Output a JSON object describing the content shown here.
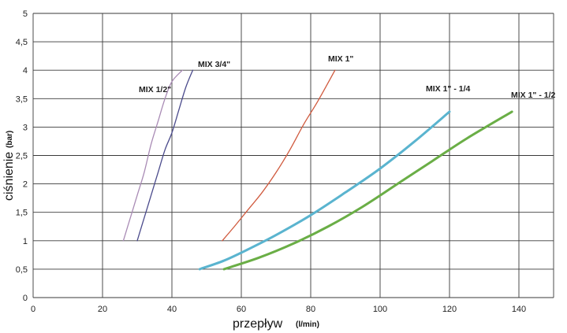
{
  "chart_data": {
    "type": "line",
    "xlabel": "przepływ",
    "xunit": "(l/min)",
    "ylabel": "ciśnienie",
    "yunit": "(bar)",
    "xlim": [
      0,
      150
    ],
    "ylim": [
      0,
      5
    ],
    "xticks": [
      0,
      20,
      40,
      60,
      80,
      100,
      120,
      140
    ],
    "yticks": [
      "0",
      "0,5",
      "1",
      "1,5",
      "2",
      "2,5",
      "3",
      "3,5",
      "4",
      "4,5",
      "5"
    ],
    "grid": true,
    "series": [
      {
        "name": "MIX 1/2\"",
        "color": "#a98bb5",
        "width": 1.3,
        "points": [
          [
            26,
            1
          ],
          [
            28,
            1.4
          ],
          [
            30,
            1.8
          ],
          [
            32,
            2.2
          ],
          [
            34,
            2.7
          ],
          [
            36,
            3.1
          ],
          [
            38,
            3.5
          ],
          [
            40,
            3.8
          ],
          [
            43,
            4
          ]
        ]
      },
      {
        "name": "MIX 3/4\"",
        "color": "#4b4b8c",
        "width": 1.3,
        "points": [
          [
            30,
            1
          ],
          [
            32,
            1.4
          ],
          [
            34,
            1.8
          ],
          [
            36,
            2.2
          ],
          [
            38,
            2.6
          ],
          [
            40,
            2.9
          ],
          [
            42,
            3.3
          ],
          [
            44,
            3.7
          ],
          [
            46,
            4
          ]
        ]
      },
      {
        "name": "MIX 1\"",
        "color": "#d05a3e",
        "width": 1.3,
        "points": [
          [
            54.5,
            1
          ],
          [
            58,
            1.25
          ],
          [
            62,
            1.55
          ],
          [
            66,
            1.85
          ],
          [
            70,
            2.2
          ],
          [
            74,
            2.6
          ],
          [
            78,
            3.05
          ],
          [
            82,
            3.45
          ],
          [
            87,
            4
          ]
        ]
      },
      {
        "name": "MIX 1\" -  1/4",
        "color": "#5ab4cf",
        "width": 3,
        "points": [
          [
            48,
            0.5
          ],
          [
            55,
            0.65
          ],
          [
            62,
            0.85
          ],
          [
            70,
            1.1
          ],
          [
            80,
            1.45
          ],
          [
            90,
            1.85
          ],
          [
            100,
            2.27
          ],
          [
            110,
            2.75
          ],
          [
            120,
            3.27
          ]
        ]
      },
      {
        "name": "MIX 1\" - 1/2",
        "color": "#6aae46",
        "width": 3,
        "points": [
          [
            55,
            0.5
          ],
          [
            65,
            0.7
          ],
          [
            75,
            0.95
          ],
          [
            85,
            1.25
          ],
          [
            95,
            1.6
          ],
          [
            105,
            2.0
          ],
          [
            115,
            2.4
          ],
          [
            125,
            2.8
          ],
          [
            138,
            3.27
          ]
        ]
      }
    ]
  }
}
